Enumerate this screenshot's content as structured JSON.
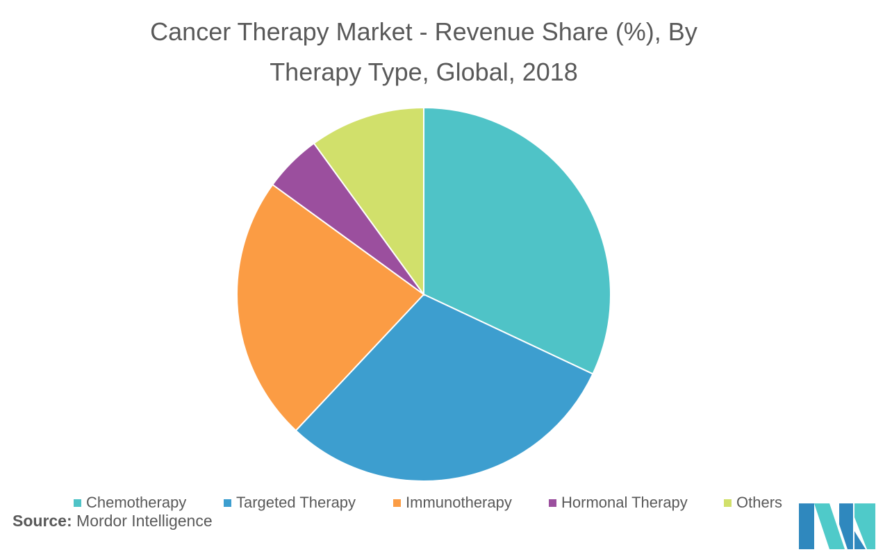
{
  "title": {
    "line1": "Cancer Therapy Market -  Revenue Share (%), By",
    "line2": "Therapy Type, Global,  2018"
  },
  "chart_data": {
    "type": "pie",
    "title": "Cancer Therapy Market -  Revenue Share (%), By Therapy Type, Global,  2018",
    "series": [
      {
        "name": "Chemotherapy",
        "value": 32,
        "color": "#4fc3c7"
      },
      {
        "name": "Targeted Therapy",
        "value": 30,
        "color": "#3d9ecf"
      },
      {
        "name": "Immunotherapy",
        "value": 23,
        "color": "#fb9c44"
      },
      {
        "name": "Hormonal Therapy",
        "value": 5,
        "color": "#9b4f9e"
      },
      {
        "name": "Others",
        "value": 10,
        "color": "#d1e06b"
      }
    ],
    "legend_position": "bottom"
  },
  "source": {
    "label": "Source:",
    "text": "Mordor Intelligence"
  },
  "logo": {
    "icon": "mordor-intelligence-logo-icon",
    "colors": [
      "#2f88be",
      "#4fcac9"
    ]
  }
}
